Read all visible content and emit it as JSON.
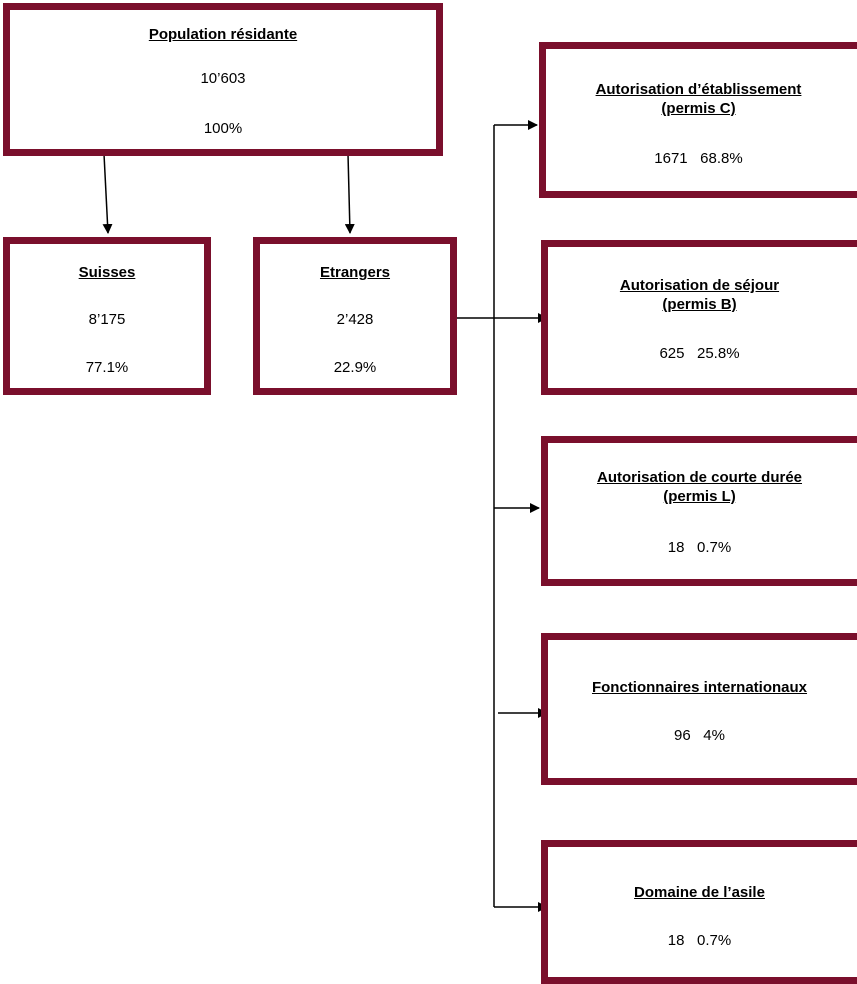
{
  "colors": {
    "box_border": "#7a0f2c",
    "line": "#000000"
  },
  "root": {
    "title": "Population résidante",
    "value": "10’603",
    "percent": "100%"
  },
  "suisses": {
    "title": "Suisses",
    "value": "8’175",
    "percent": "77.1%"
  },
  "etrangers": {
    "title": "Etrangers",
    "value": "2’428",
    "percent": "22.9%"
  },
  "permits": [
    {
      "title_line1": "Autorisation d’établissement",
      "title_line2": "(permis C)",
      "value": "1671",
      "percent": "68.8%"
    },
    {
      "title_line1": "Autorisation de séjour",
      "title_line2": "(permis B)",
      "value": "625",
      "percent": "25.8%"
    },
    {
      "title_line1": "Autorisation de courte durée",
      "title_line2": "(permis L)",
      "value": "18",
      "percent": "0.7%"
    },
    {
      "title_line1": "Fonctionnaires internationaux",
      "title_line2": "",
      "value": "96",
      "percent": "4%"
    },
    {
      "title_line1": "Domaine de l’asile",
      "title_line2": "",
      "value": "18",
      "percent": "0.7%"
    }
  ]
}
